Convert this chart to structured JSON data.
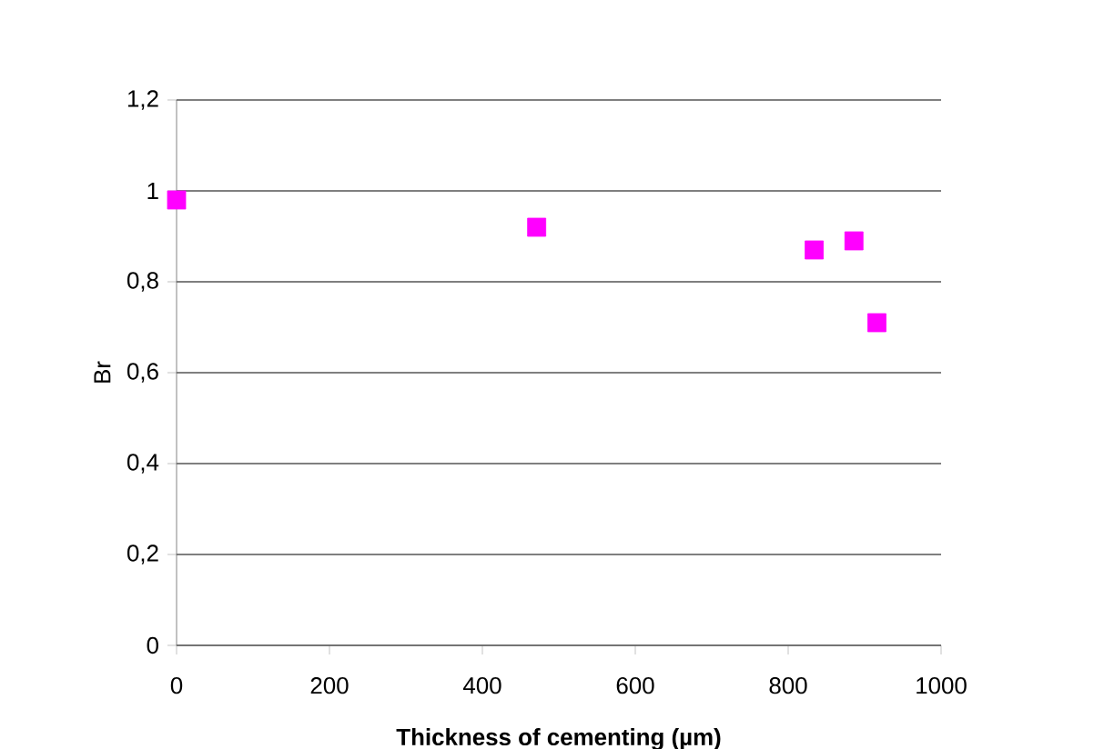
{
  "chart_data": {
    "type": "scatter",
    "xlabel": "Thickness of cementing (µm)",
    "ylabel": "Br",
    "x": [
      0,
      471,
      834,
      886,
      916
    ],
    "values": [
      0.98,
      0.92,
      0.87,
      0.89,
      0.71
    ],
    "color": "#ff00ff",
    "marker": "square",
    "grid": "y",
    "xlim": [
      0,
      1000
    ],
    "xticks": [
      0,
      200,
      400,
      600,
      800,
      1000
    ],
    "ylim": [
      0,
      1.2
    ],
    "yticks": [
      0,
      {
        "value": 0.2,
        "label": "0,2"
      },
      {
        "value": 0.4,
        "label": "0,4"
      },
      {
        "value": 0.6,
        "label": "0,6"
      },
      {
        "value": 0.8,
        "label": "0,8"
      },
      1,
      {
        "value": 1.2,
        "label": "1,2"
      }
    ]
  }
}
